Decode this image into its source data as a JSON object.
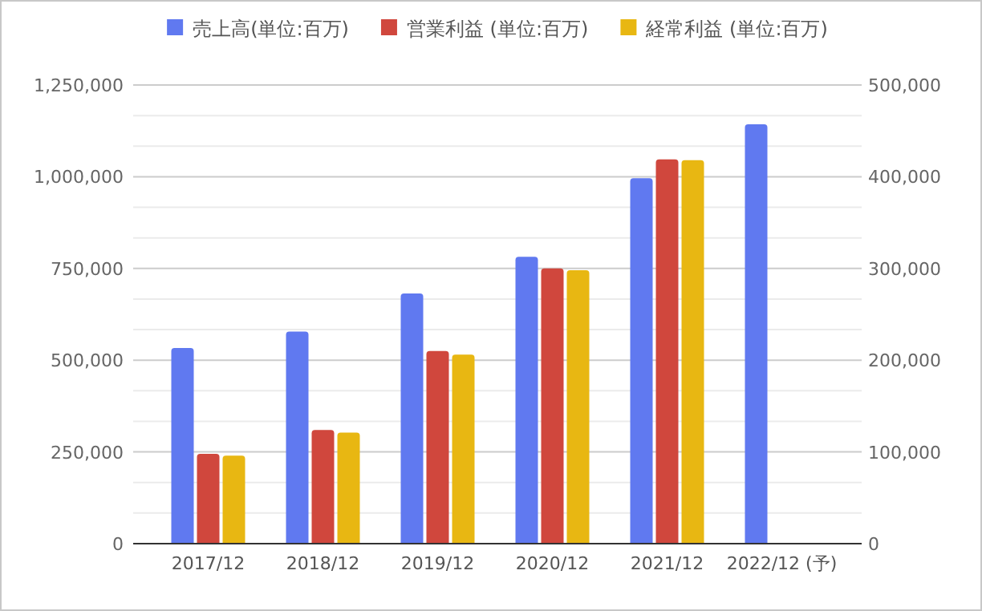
{
  "chart_data": {
    "type": "bar",
    "categories": [
      "2017/12",
      "2018/12",
      "2019/12",
      "2020/12",
      "2021/12",
      "2022/12 (予)"
    ],
    "series": [
      {
        "name": "売上高(単位:百万)",
        "color": "#6079f0",
        "values": [
          533000,
          578000,
          682000,
          782000,
          996000,
          1143000
        ]
      },
      {
        "name": "営業利益 (単位:百万)",
        "color": "#d0473d",
        "values": [
          98000,
          124000,
          210000,
          300000,
          419000,
          null
        ],
        "axis": "y2"
      },
      {
        "name": "経常利益 (単位:百万)",
        "color": "#e8b712",
        "values": [
          96000,
          121000,
          206000,
          298000,
          418000,
          null
        ],
        "axis": "y2"
      }
    ],
    "ylim": [
      0,
      1250000
    ],
    "yticks": [
      {
        "value": 0,
        "label": "0"
      },
      {
        "value": 250000,
        "label": "250,000"
      },
      {
        "value": 500000,
        "label": "500,000"
      },
      {
        "value": 750000,
        "label": "750,000"
      },
      {
        "value": 1000000,
        "label": "1,000,000"
      },
      {
        "value": 1250000,
        "label": "1,250,000"
      }
    ],
    "y2lim": [
      0,
      500000
    ],
    "y2ticks": [
      {
        "value": 0,
        "label": "0"
      },
      {
        "value": 100000,
        "label": "100,000"
      },
      {
        "value": 200000,
        "label": "200,000"
      },
      {
        "value": 300000,
        "label": "300,000"
      },
      {
        "value": 400000,
        "label": "400,000"
      },
      {
        "value": 500000,
        "label": "500,000"
      }
    ],
    "grid": "y",
    "legend": "top"
  }
}
